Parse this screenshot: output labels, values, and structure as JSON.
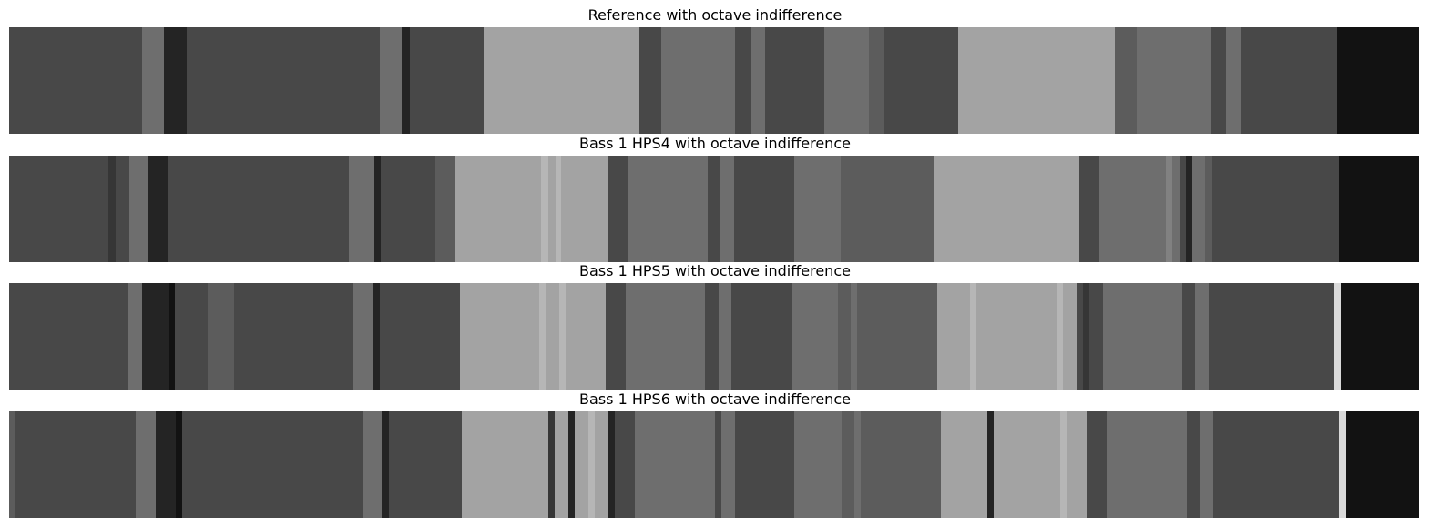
{
  "chart_data": [
    {
      "type": "heatmap",
      "title": "Reference with octave indifference",
      "x_domain": [
        0,
        1548
      ],
      "segments": [
        {
          "start": 0,
          "end": 146,
          "color": "#484848"
        },
        {
          "start": 146,
          "end": 170,
          "color": "#6e6e6e"
        },
        {
          "start": 170,
          "end": 195,
          "color": "#242424"
        },
        {
          "start": 195,
          "end": 407,
          "color": "#484848"
        },
        {
          "start": 407,
          "end": 431,
          "color": "#6e6e6e"
        },
        {
          "start": 431,
          "end": 440,
          "color": "#242424"
        },
        {
          "start": 440,
          "end": 521,
          "color": "#484848"
        },
        {
          "start": 521,
          "end": 692,
          "color": "#a3a3a3"
        },
        {
          "start": 692,
          "end": 716,
          "color": "#484848"
        },
        {
          "start": 716,
          "end": 797,
          "color": "#6e6e6e"
        },
        {
          "start": 797,
          "end": 814,
          "color": "#484848"
        },
        {
          "start": 814,
          "end": 830,
          "color": "#6e6e6e"
        },
        {
          "start": 830,
          "end": 895,
          "color": "#484848"
        },
        {
          "start": 895,
          "end": 944,
          "color": "#6e6e6e"
        },
        {
          "start": 944,
          "end": 961,
          "color": "#5c5c5c"
        },
        {
          "start": 961,
          "end": 1042,
          "color": "#484848"
        },
        {
          "start": 1042,
          "end": 1214,
          "color": "#a3a3a3"
        },
        {
          "start": 1214,
          "end": 1238,
          "color": "#5c5c5c"
        },
        {
          "start": 1238,
          "end": 1320,
          "color": "#6e6e6e"
        },
        {
          "start": 1320,
          "end": 1336,
          "color": "#484848"
        },
        {
          "start": 1336,
          "end": 1352,
          "color": "#6e6e6e"
        },
        {
          "start": 1352,
          "end": 1458,
          "color": "#484848"
        },
        {
          "start": 1458,
          "end": 1548,
          "color": "#121212"
        }
      ]
    },
    {
      "type": "heatmap",
      "title": "Bass 1 HPS4 with octave indifference",
      "x_domain": [
        0,
        1548
      ],
      "segments": [
        {
          "start": 0,
          "end": 109,
          "color": "#484848"
        },
        {
          "start": 109,
          "end": 117,
          "color": "#363636"
        },
        {
          "start": 117,
          "end": 132,
          "color": "#484848"
        },
        {
          "start": 132,
          "end": 153,
          "color": "#6e6e6e"
        },
        {
          "start": 153,
          "end": 174,
          "color": "#242424"
        },
        {
          "start": 174,
          "end": 373,
          "color": "#484848"
        },
        {
          "start": 373,
          "end": 401,
          "color": "#6e6e6e"
        },
        {
          "start": 401,
          "end": 408,
          "color": "#242424"
        },
        {
          "start": 408,
          "end": 468,
          "color": "#484848"
        },
        {
          "start": 468,
          "end": 489,
          "color": "#5c5c5c"
        },
        {
          "start": 489,
          "end": 584,
          "color": "#a3a3a3"
        },
        {
          "start": 584,
          "end": 592,
          "color": "#b6b6b6"
        },
        {
          "start": 592,
          "end": 600,
          "color": "#a3a3a3"
        },
        {
          "start": 600,
          "end": 606,
          "color": "#b6b6b6"
        },
        {
          "start": 606,
          "end": 657,
          "color": "#a3a3a3"
        },
        {
          "start": 657,
          "end": 679,
          "color": "#484848"
        },
        {
          "start": 679,
          "end": 767,
          "color": "#6e6e6e"
        },
        {
          "start": 767,
          "end": 781,
          "color": "#484848"
        },
        {
          "start": 781,
          "end": 796,
          "color": "#6e6e6e"
        },
        {
          "start": 796,
          "end": 862,
          "color": "#484848"
        },
        {
          "start": 862,
          "end": 913,
          "color": "#6e6e6e"
        },
        {
          "start": 913,
          "end": 1015,
          "color": "#5c5c5c"
        },
        {
          "start": 1015,
          "end": 1175,
          "color": "#a3a3a3"
        },
        {
          "start": 1175,
          "end": 1197,
          "color": "#484848"
        },
        {
          "start": 1197,
          "end": 1270,
          "color": "#6e6e6e"
        },
        {
          "start": 1270,
          "end": 1277,
          "color": "#818181"
        },
        {
          "start": 1277,
          "end": 1285,
          "color": "#6e6e6e"
        },
        {
          "start": 1285,
          "end": 1292,
          "color": "#484848"
        },
        {
          "start": 1292,
          "end": 1299,
          "color": "#242424"
        },
        {
          "start": 1299,
          "end": 1313,
          "color": "#6e6e6e"
        },
        {
          "start": 1313,
          "end": 1321,
          "color": "#5c5c5c"
        },
        {
          "start": 1321,
          "end": 1460,
          "color": "#484848"
        },
        {
          "start": 1460,
          "end": 1548,
          "color": "#121212"
        }
      ]
    },
    {
      "type": "heatmap",
      "title": "Bass 1 HPS5 with octave indifference",
      "x_domain": [
        0,
        1548
      ],
      "segments": [
        {
          "start": 0,
          "end": 131,
          "color": "#484848"
        },
        {
          "start": 131,
          "end": 146,
          "color": "#6e6e6e"
        },
        {
          "start": 146,
          "end": 175,
          "color": "#242424"
        },
        {
          "start": 175,
          "end": 182,
          "color": "#121212"
        },
        {
          "start": 182,
          "end": 218,
          "color": "#484848"
        },
        {
          "start": 218,
          "end": 247,
          "color": "#5c5c5c"
        },
        {
          "start": 247,
          "end": 378,
          "color": "#484848"
        },
        {
          "start": 378,
          "end": 400,
          "color": "#6e6e6e"
        },
        {
          "start": 400,
          "end": 407,
          "color": "#242424"
        },
        {
          "start": 407,
          "end": 495,
          "color": "#484848"
        },
        {
          "start": 495,
          "end": 582,
          "color": "#a3a3a3"
        },
        {
          "start": 582,
          "end": 589,
          "color": "#b6b6b6"
        },
        {
          "start": 589,
          "end": 604,
          "color": "#a3a3a3"
        },
        {
          "start": 604,
          "end": 611,
          "color": "#b6b6b6"
        },
        {
          "start": 611,
          "end": 655,
          "color": "#a3a3a3"
        },
        {
          "start": 655,
          "end": 677,
          "color": "#484848"
        },
        {
          "start": 677,
          "end": 764,
          "color": "#6e6e6e"
        },
        {
          "start": 764,
          "end": 779,
          "color": "#484848"
        },
        {
          "start": 779,
          "end": 793,
          "color": "#6e6e6e"
        },
        {
          "start": 793,
          "end": 859,
          "color": "#484848"
        },
        {
          "start": 859,
          "end": 910,
          "color": "#6e6e6e"
        },
        {
          "start": 910,
          "end": 924,
          "color": "#5c5c5c"
        },
        {
          "start": 924,
          "end": 931,
          "color": "#6e6e6e"
        },
        {
          "start": 931,
          "end": 1019,
          "color": "#5c5c5c"
        },
        {
          "start": 1019,
          "end": 1055,
          "color": "#a3a3a3"
        },
        {
          "start": 1055,
          "end": 1062,
          "color": "#b6b6b6"
        },
        {
          "start": 1062,
          "end": 1150,
          "color": "#a3a3a3"
        },
        {
          "start": 1150,
          "end": 1157,
          "color": "#b6b6b6"
        },
        {
          "start": 1157,
          "end": 1172,
          "color": "#a3a3a3"
        },
        {
          "start": 1172,
          "end": 1179,
          "color": "#484848"
        },
        {
          "start": 1179,
          "end": 1186,
          "color": "#363636"
        },
        {
          "start": 1186,
          "end": 1201,
          "color": "#484848"
        },
        {
          "start": 1201,
          "end": 1288,
          "color": "#6e6e6e"
        },
        {
          "start": 1288,
          "end": 1302,
          "color": "#484848"
        },
        {
          "start": 1302,
          "end": 1317,
          "color": "#6e6e6e"
        },
        {
          "start": 1317,
          "end": 1455,
          "color": "#484848"
        },
        {
          "start": 1455,
          "end": 1462,
          "color": "#dadada"
        },
        {
          "start": 1462,
          "end": 1548,
          "color": "#121212"
        }
      ]
    },
    {
      "type": "heatmap",
      "title": "Bass 1 HPS6 with octave indifference",
      "x_domain": [
        0,
        1548
      ],
      "segments": [
        {
          "start": 0,
          "end": 7,
          "color": "#5c5c5c"
        },
        {
          "start": 7,
          "end": 139,
          "color": "#484848"
        },
        {
          "start": 139,
          "end": 161,
          "color": "#6e6e6e"
        },
        {
          "start": 161,
          "end": 183,
          "color": "#242424"
        },
        {
          "start": 183,
          "end": 190,
          "color": "#121212"
        },
        {
          "start": 190,
          "end": 388,
          "color": "#484848"
        },
        {
          "start": 388,
          "end": 409,
          "color": "#6e6e6e"
        },
        {
          "start": 409,
          "end": 417,
          "color": "#242424"
        },
        {
          "start": 417,
          "end": 497,
          "color": "#484848"
        },
        {
          "start": 497,
          "end": 592,
          "color": "#a3a3a3"
        },
        {
          "start": 592,
          "end": 599,
          "color": "#363636"
        },
        {
          "start": 599,
          "end": 614,
          "color": "#a3a3a3"
        },
        {
          "start": 614,
          "end": 621,
          "color": "#242424"
        },
        {
          "start": 621,
          "end": 636,
          "color": "#a3a3a3"
        },
        {
          "start": 636,
          "end": 643,
          "color": "#b6b6b6"
        },
        {
          "start": 643,
          "end": 658,
          "color": "#a3a3a3"
        },
        {
          "start": 658,
          "end": 665,
          "color": "#242424"
        },
        {
          "start": 665,
          "end": 687,
          "color": "#484848"
        },
        {
          "start": 687,
          "end": 775,
          "color": "#6e6e6e"
        },
        {
          "start": 775,
          "end": 782,
          "color": "#484848"
        },
        {
          "start": 782,
          "end": 797,
          "color": "#6e6e6e"
        },
        {
          "start": 797,
          "end": 862,
          "color": "#484848"
        },
        {
          "start": 862,
          "end": 914,
          "color": "#6e6e6e"
        },
        {
          "start": 914,
          "end": 928,
          "color": "#5c5c5c"
        },
        {
          "start": 928,
          "end": 935,
          "color": "#6e6e6e"
        },
        {
          "start": 935,
          "end": 1023,
          "color": "#5c5c5c"
        },
        {
          "start": 1023,
          "end": 1074,
          "color": "#a3a3a3"
        },
        {
          "start": 1074,
          "end": 1081,
          "color": "#242424"
        },
        {
          "start": 1081,
          "end": 1154,
          "color": "#a3a3a3"
        },
        {
          "start": 1154,
          "end": 1161,
          "color": "#b6b6b6"
        },
        {
          "start": 1161,
          "end": 1183,
          "color": "#a3a3a3"
        },
        {
          "start": 1183,
          "end": 1205,
          "color": "#484848"
        },
        {
          "start": 1205,
          "end": 1293,
          "color": "#6e6e6e"
        },
        {
          "start": 1293,
          "end": 1307,
          "color": "#484848"
        },
        {
          "start": 1307,
          "end": 1322,
          "color": "#6e6e6e"
        },
        {
          "start": 1322,
          "end": 1460,
          "color": "#484848"
        },
        {
          "start": 1460,
          "end": 1468,
          "color": "#dadada"
        },
        {
          "start": 1468,
          "end": 1548,
          "color": "#121212"
        }
      ]
    }
  ]
}
